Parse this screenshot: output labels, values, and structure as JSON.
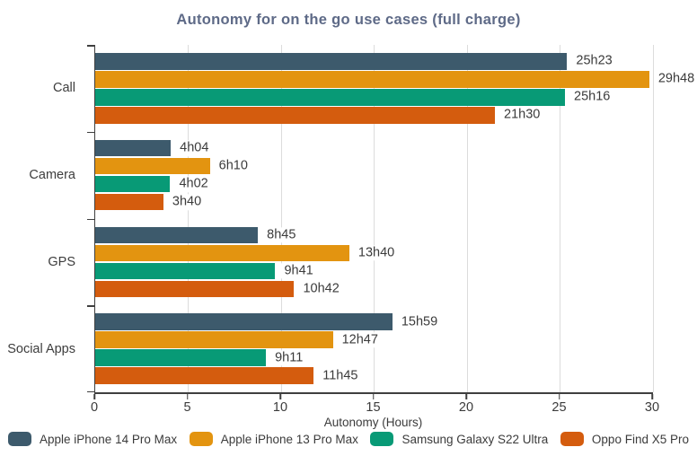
{
  "title": "Autonomy for on the go use cases (full charge)",
  "chart_data": {
    "type": "bar",
    "orientation": "horizontal",
    "title": "Autonomy for on the go use cases (full charge)",
    "xlabel": "Autonomy (Hours)",
    "xlim": [
      0,
      30
    ],
    "xticks": [
      0,
      5,
      10,
      15,
      20,
      25,
      30
    ],
    "grid": true,
    "legend_position": "bottom",
    "categories": [
      "Call",
      "Camera",
      "GPS",
      "Social Apps"
    ],
    "series": [
      {
        "name": "Apple iPhone 14 Pro Max",
        "color": "#3d5a6c",
        "values": [
          25.383,
          4.067,
          8.75,
          15.983
        ],
        "labels": [
          "25h23",
          "4h04",
          "8h45",
          "15h59"
        ]
      },
      {
        "name": "Apple iPhone 13 Pro Max",
        "color": "#e39410",
        "values": [
          29.8,
          6.167,
          13.667,
          12.783
        ],
        "labels": [
          "29h48",
          "6h10",
          "13h40",
          "12h47"
        ]
      },
      {
        "name": "Samsung Galaxy S22 Ultra",
        "color": "#089a76",
        "values": [
          25.267,
          4.033,
          9.683,
          9.183
        ],
        "labels": [
          "25h16",
          "4h02",
          "9h41",
          "9h11"
        ]
      },
      {
        "name": "Oppo Find X5 Pro",
        "color": "#d45c0e",
        "values": [
          21.5,
          3.667,
          10.7,
          11.75
        ],
        "labels": [
          "21h30",
          "3h40",
          "10h42",
          "11h45"
        ]
      }
    ],
    "colors": {
      "grid": "#dcdcdc",
      "axis": "#3f3f3f",
      "title_text": "#5e6a87",
      "label_text": "#3b3b3b"
    }
  }
}
